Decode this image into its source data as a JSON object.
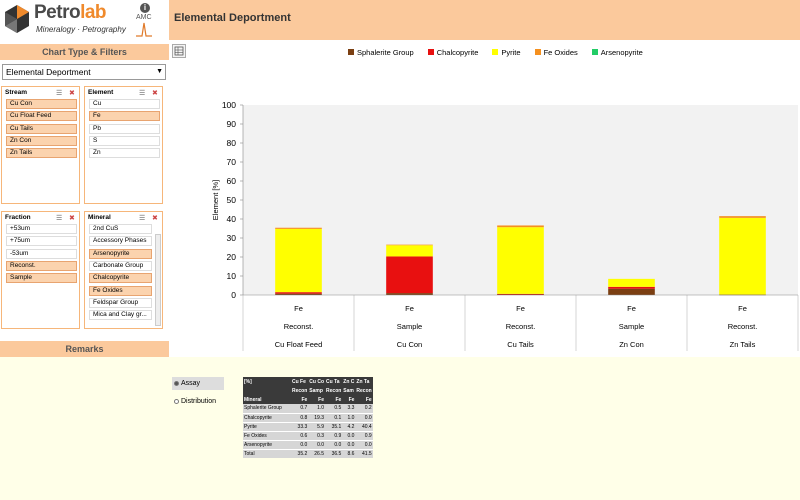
{
  "header": {
    "app_name_part1": "Petro",
    "app_name_part2": "lab",
    "app_subtitle": "Mineralogy · Petrography",
    "amc_label": "AMC",
    "info_icon": "i",
    "page_title": "Elemental Deportment"
  },
  "sidebar": {
    "chart_type_title": "Chart Type & Filters",
    "chart_type_value": "Elemental Deportment",
    "remarks_title": "Remarks",
    "stream": {
      "title": "Stream",
      "items": [
        {
          "label": "Cu Con",
          "selected": true
        },
        {
          "label": "Cu Float Feed",
          "selected": true
        },
        {
          "label": "Cu Tails",
          "selected": true
        },
        {
          "label": "Zn Con",
          "selected": true
        },
        {
          "label": "Zn Tails",
          "selected": true
        }
      ]
    },
    "element": {
      "title": "Element",
      "items": [
        {
          "label": "Cu",
          "selected": false
        },
        {
          "label": "Fe",
          "selected": true
        },
        {
          "label": "Pb",
          "selected": false
        },
        {
          "label": "S",
          "selected": false
        },
        {
          "label": "Zn",
          "selected": false
        }
      ]
    },
    "fraction": {
      "title": "Fraction",
      "items": [
        {
          "label": "+53um",
          "selected": false
        },
        {
          "label": "+75um",
          "selected": false
        },
        {
          "label": "-53um",
          "selected": false
        },
        {
          "label": "Reconst.",
          "selected": true
        },
        {
          "label": "Sample",
          "selected": true
        }
      ]
    },
    "mineral": {
      "title": "Mineral",
      "items": [
        {
          "label": "2nd CuS",
          "selected": false
        },
        {
          "label": "Accessory Phases",
          "selected": false
        },
        {
          "label": "Arsenopyrite",
          "selected": true
        },
        {
          "label": "Carbonate Group",
          "selected": false
        },
        {
          "label": "Chalcopyrite",
          "selected": true
        },
        {
          "label": "Fe Oxides",
          "selected": true
        },
        {
          "label": "Feldspar Group",
          "selected": false
        },
        {
          "label": "Mica and Clay gr...",
          "selected": false
        }
      ]
    }
  },
  "options": {
    "assay": "Assay",
    "distribution": "Distribution",
    "selected": "assay"
  },
  "chart_data": {
    "type": "bar",
    "stacked": true,
    "ylabel": "Element [%]",
    "ylim": [
      0,
      100
    ],
    "yticks": [
      0,
      10,
      20,
      30,
      40,
      50,
      60,
      70,
      80,
      90,
      100
    ],
    "categories": [
      {
        "element": "Fe",
        "fraction": "Reconst.",
        "stream": "Cu Float Feed"
      },
      {
        "element": "Fe",
        "fraction": "Sample",
        "stream": "Cu Con"
      },
      {
        "element": "Fe",
        "fraction": "Reconst.",
        "stream": "Cu Tails"
      },
      {
        "element": "Fe",
        "fraction": "Sample",
        "stream": "Zn Con"
      },
      {
        "element": "Fe",
        "fraction": "Reconst.",
        "stream": "Zn Tails"
      }
    ],
    "series": [
      {
        "name": "Sphalerite Group",
        "color": "#7b3f12",
        "values": [
          0.7,
          1.0,
          0.5,
          3.3,
          0.2
        ]
      },
      {
        "name": "Chalcopyrite",
        "color": "#e81010",
        "values": [
          0.8,
          19.3,
          0.1,
          1.0,
          0.0
        ]
      },
      {
        "name": "Pyrite",
        "color": "#ffff00",
        "values": [
          33.3,
          5.9,
          35.1,
          4.2,
          40.4
        ]
      },
      {
        "name": "Fe Oxides",
        "color": "#f5901e",
        "values": [
          0.6,
          0.3,
          0.9,
          0.0,
          0.9
        ]
      },
      {
        "name": "Arsenopyrite",
        "color": "#22cc66",
        "values": [
          0.0,
          0.0,
          0.0,
          0.0,
          0.0
        ]
      }
    ],
    "legend_position": "top",
    "grid": false
  },
  "pivot": {
    "corner": "[%]",
    "header_streams": [
      "Cu Fe",
      "Cu Co",
      "Cu Ta",
      "Zn C",
      "Zn Ta"
    ],
    "header_fractions": [
      "Recon",
      "Samp",
      "Recon",
      "Sam",
      "Recon"
    ],
    "header_elements": [
      "Fe",
      "Fe",
      "Fe",
      "Fe",
      "Fe"
    ],
    "row_label_header": "Mineral",
    "rows": [
      {
        "label": "Sphalerite Group",
        "values": [
          "0.7",
          "1.0",
          "0.5",
          "3.3",
          "0.2"
        ]
      },
      {
        "label": "Chalcopyrite",
        "values": [
          "0.8",
          "19.3",
          "0.1",
          "1.0",
          "0.0"
        ]
      },
      {
        "label": "Pyrite",
        "values": [
          "33.3",
          "5.9",
          "35.1",
          "4.2",
          "40.4"
        ]
      },
      {
        "label": "Fe Oxides",
        "values": [
          "0.6",
          "0.3",
          "0.9",
          "0.0",
          "0.9"
        ]
      },
      {
        "label": "Arsenopyrite",
        "values": [
          "0.0",
          "0.0",
          "0.0",
          "0.0",
          "0.0"
        ]
      }
    ],
    "total": {
      "label": "Total",
      "values": [
        "35.2",
        "26.5",
        "36.5",
        "8.6",
        "41.5"
      ]
    }
  }
}
